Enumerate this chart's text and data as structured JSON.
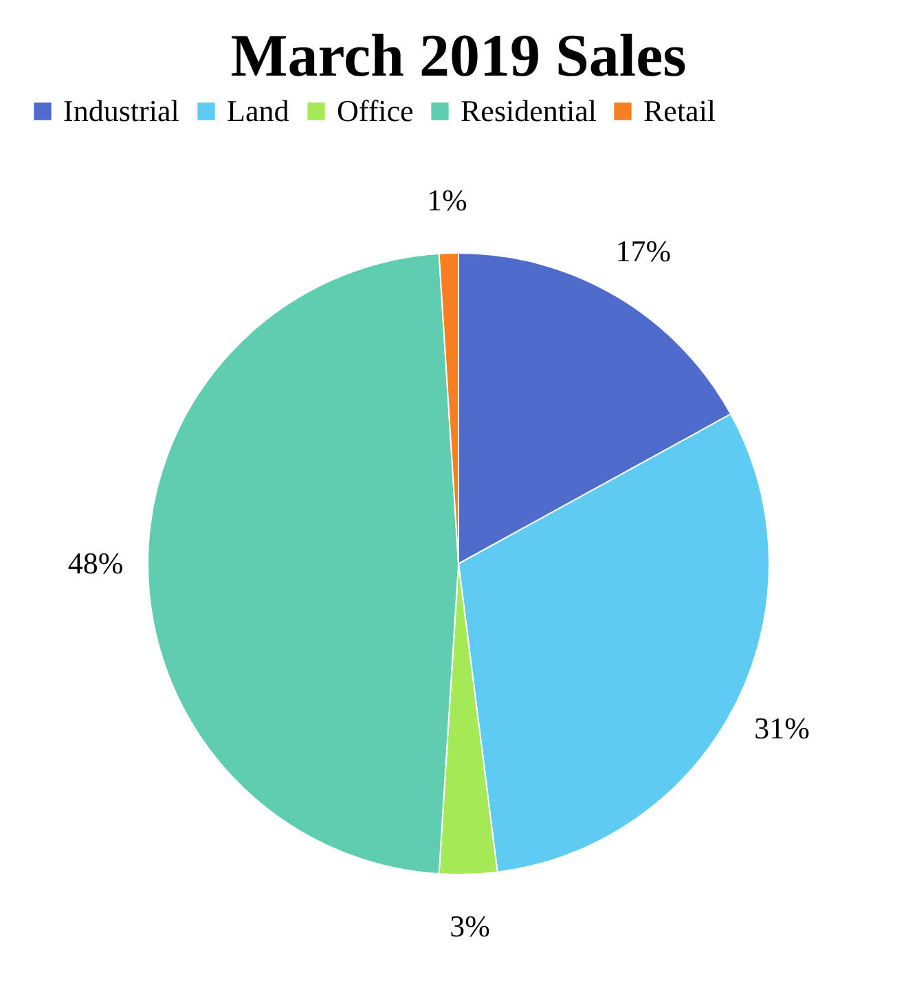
{
  "chart_data": {
    "type": "pie",
    "title": "March 2019 Sales",
    "categories": [
      "Industrial",
      "Land",
      "Office",
      "Residential",
      "Retail"
    ],
    "values": [
      17,
      31,
      3,
      48,
      1
    ],
    "colors": [
      "#4f6bcc",
      "#5ecbf2",
      "#a6e957",
      "#5ecdb0",
      "#f77f1f"
    ],
    "value_labels": [
      "17%",
      "31%",
      "3%",
      "48%",
      "1%"
    ],
    "legend": "top"
  }
}
